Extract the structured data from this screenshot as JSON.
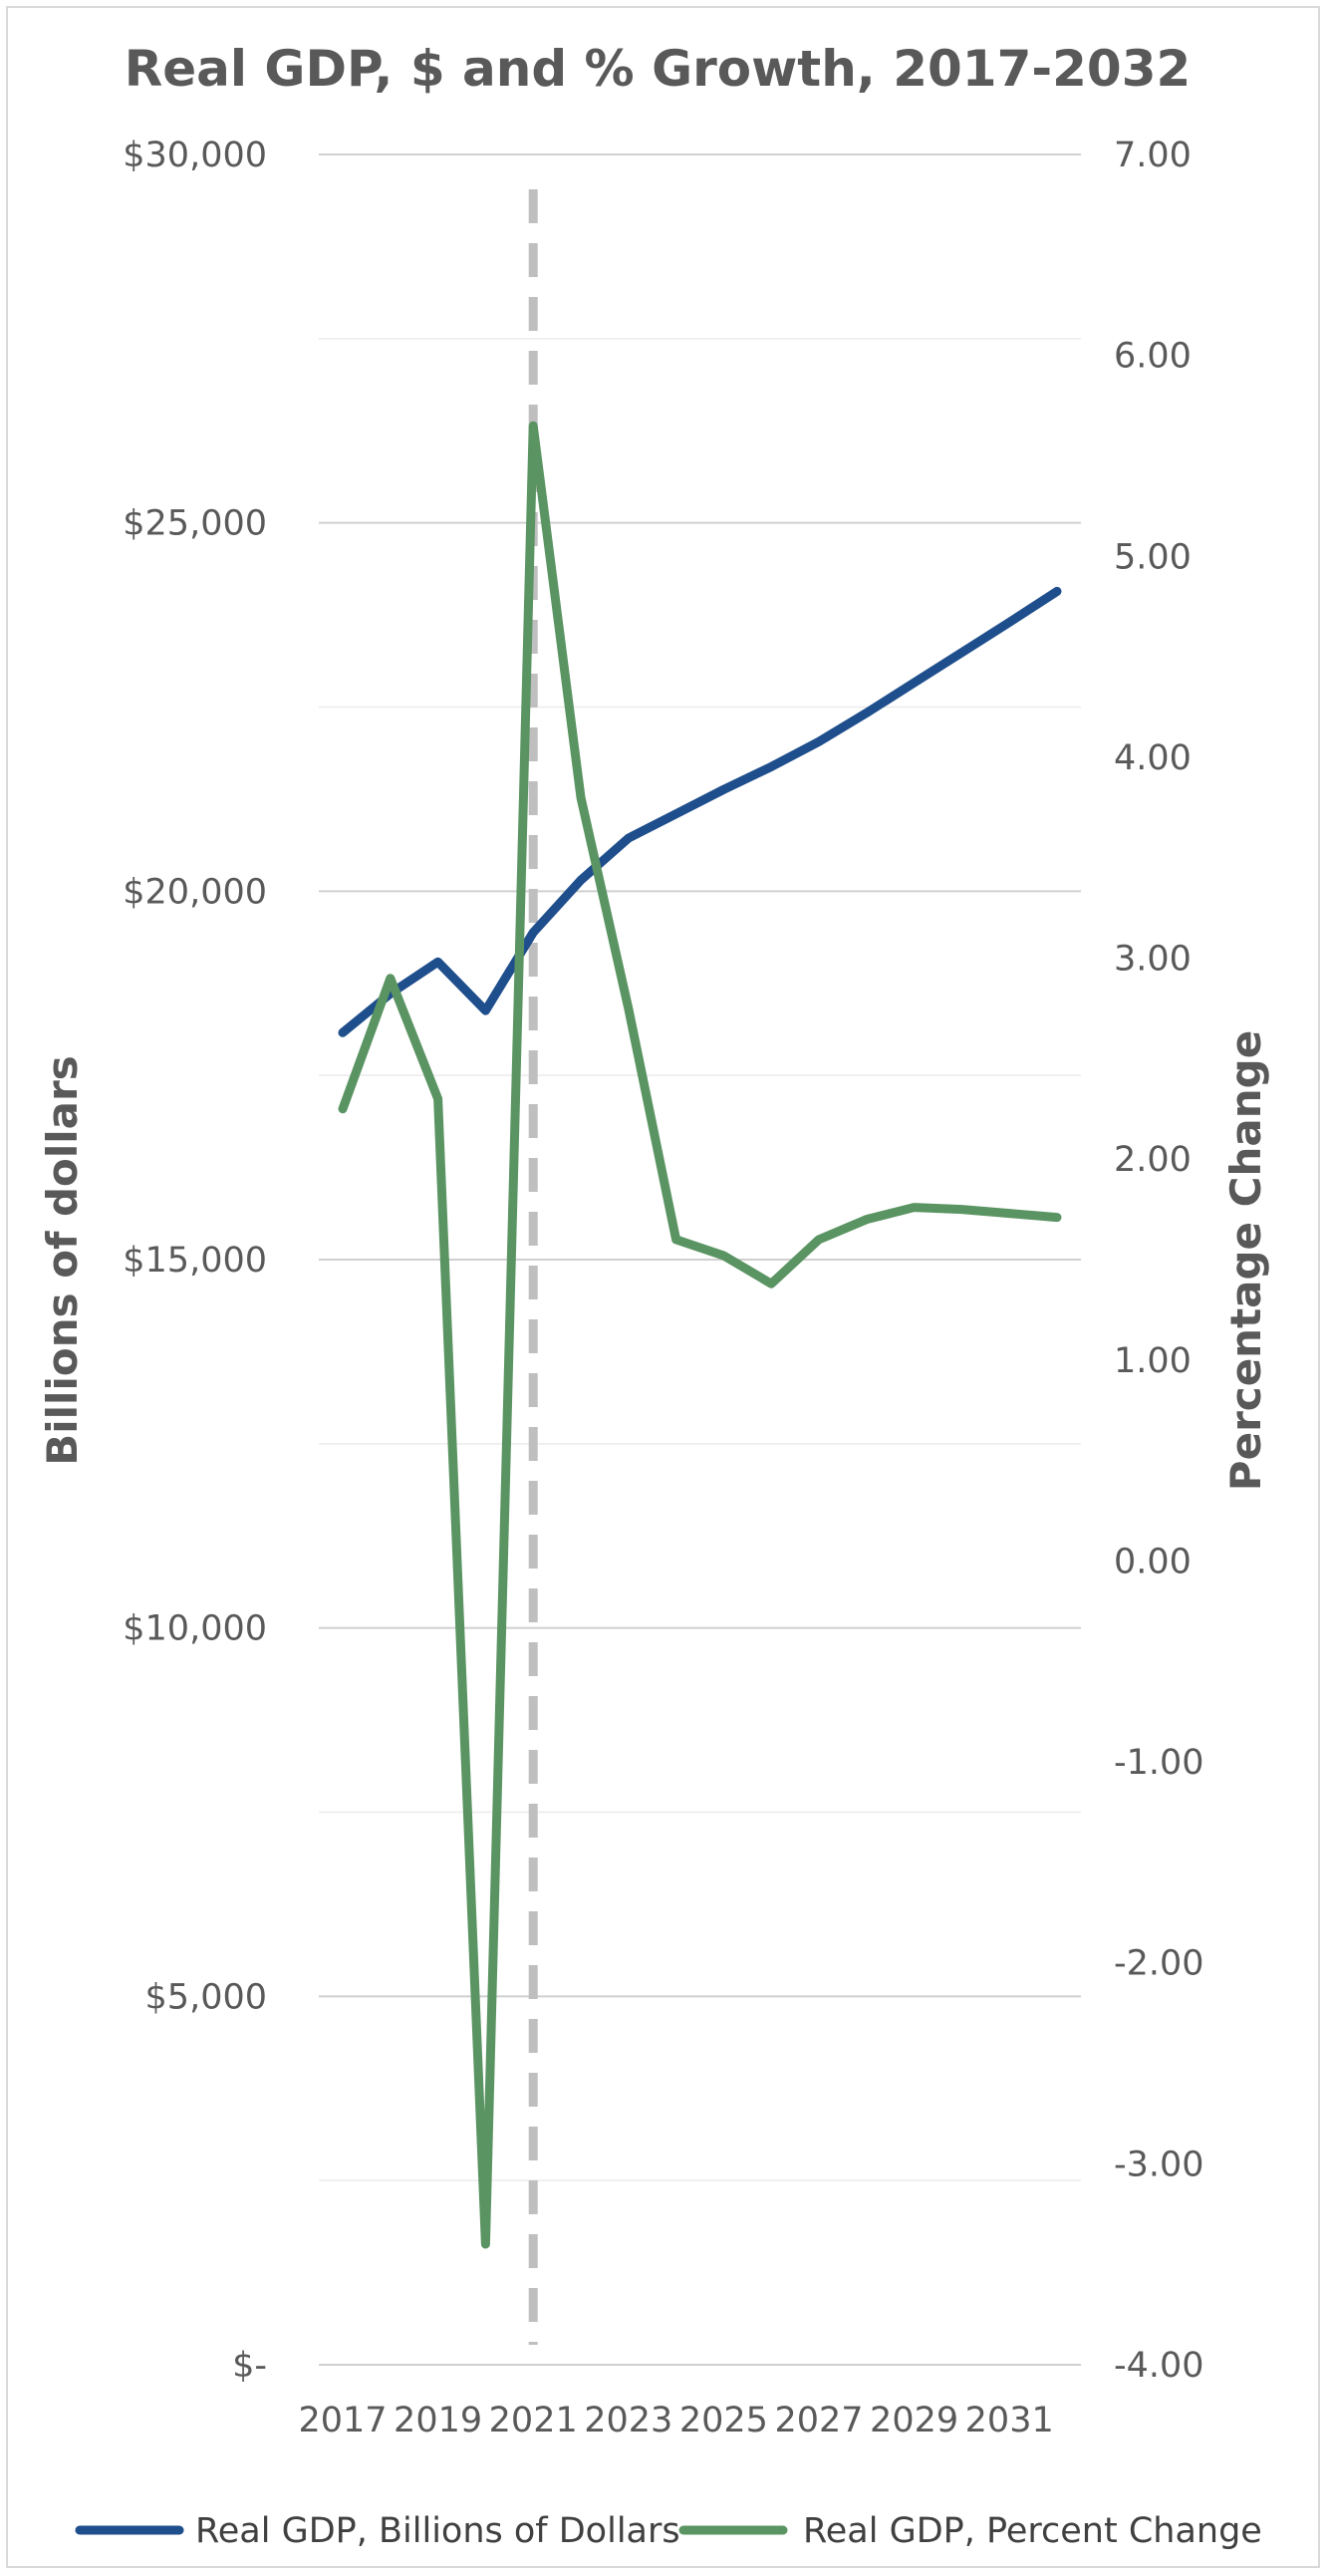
{
  "chart_data": {
    "type": "line",
    "title": "Real GDP, $ and % Growth, 2017-2032",
    "x": [
      2017,
      2018,
      2019,
      2020,
      2021,
      2022,
      2023,
      2024,
      2025,
      2026,
      2027,
      2028,
      2029,
      2030,
      2031,
      2032
    ],
    "x_tick_labels": [
      "2017",
      "2019",
      "2021",
      "2023",
      "2025",
      "2027",
      "2029",
      "2031"
    ],
    "y_left": {
      "label": "Billions of dollars",
      "lim": [
        0,
        30000
      ],
      "tick_values": [
        0,
        5000,
        10000,
        15000,
        20000,
        25000,
        30000
      ],
      "tick_labels": [
        "$-",
        "$5,000",
        "$10,000",
        "$15,000",
        "$20,000",
        "$25,000",
        "$30,000"
      ]
    },
    "y_right": {
      "label": "Percentage Change",
      "lim": [
        -4,
        7
      ],
      "tick_values": [
        -4,
        -3,
        -2,
        -1,
        0,
        1,
        2,
        3,
        4,
        5,
        6,
        7
      ],
      "tick_labels": [
        "-4.00",
        "-3.00",
        "-2.00",
        "-1.00",
        "0.00",
        "1.00",
        "2.00",
        "3.00",
        "4.00",
        "5.00",
        "6.00",
        "7.00"
      ]
    },
    "vertical_marker": {
      "x": 2021,
      "style": "dashed"
    },
    "grid": true,
    "legend_position": "bottom",
    "series": [
      {
        "name": "Real GDP, Billions of Dollars",
        "axis": "left",
        "color": "#1f4e8c",
        "values": [
          18080,
          18610,
          19040,
          18380,
          19440,
          20150,
          20720,
          21050,
          21380,
          21690,
          22030,
          22420,
          22830,
          23240,
          23650,
          24070
        ]
      },
      {
        "name": "Real GDP, Percent Change",
        "axis": "right",
        "color": "#5a9462",
        "values": [
          2.25,
          2.9,
          2.3,
          -3.4,
          5.65,
          3.8,
          2.75,
          1.6,
          1.52,
          1.38,
          1.6,
          1.7,
          1.76,
          1.75,
          1.73,
          1.71
        ]
      }
    ]
  }
}
